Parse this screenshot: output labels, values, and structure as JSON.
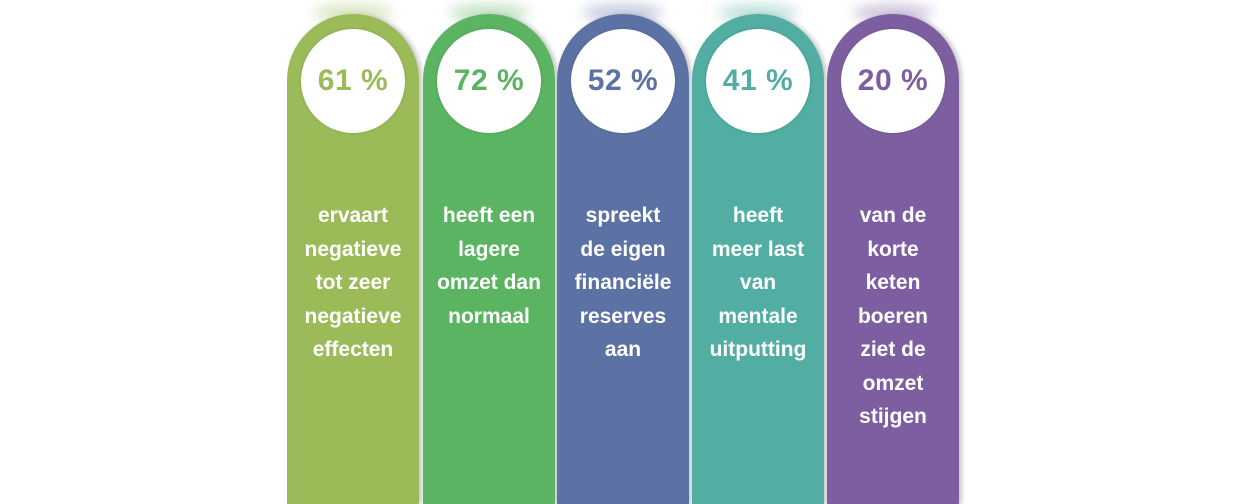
{
  "chart_data": {
    "type": "bar",
    "categories": [
      "ervaart negatieve tot zeer negatieve effecten",
      "heeft een lagere omzet dan normaal",
      "spreekt de eigen financiële reserves aan",
      "heeft meer last van mentale uitputting",
      "van de korte keten boeren ziet de omzet stijgen"
    ],
    "values": [
      61,
      72,
      52,
      41,
      20
    ],
    "unit": "%",
    "title": "",
    "xlabel": "",
    "ylabel": "",
    "ylim": [
      0,
      100
    ],
    "grid": false,
    "legend": "none"
  },
  "items": [
    {
      "value_label": "61 %",
      "lines": [
        "ervaart",
        "negatieve",
        "tot zeer",
        "negatieve",
        "effecten"
      ],
      "color": "#9BBB59"
    },
    {
      "value_label": "72 %",
      "lines": [
        "heeft een",
        "lagere",
        "omzet dan",
        "normaal"
      ],
      "color": "#5BB462"
    },
    {
      "value_label": "52 %",
      "lines": [
        "spreekt",
        "de eigen",
        "financiële",
        "reserves",
        "aan"
      ],
      "color": "#5C72A5"
    },
    {
      "value_label": "41 %",
      "lines": [
        "heeft",
        "meer last",
        "van",
        "mentale",
        "uitputting"
      ],
      "color": "#52ADA3"
    },
    {
      "value_label": "20 %",
      "lines": [
        "van de",
        "korte",
        "keten",
        "boeren",
        "ziet de",
        "omzet",
        "stijgen"
      ],
      "color": "#7D5FA1"
    }
  ]
}
